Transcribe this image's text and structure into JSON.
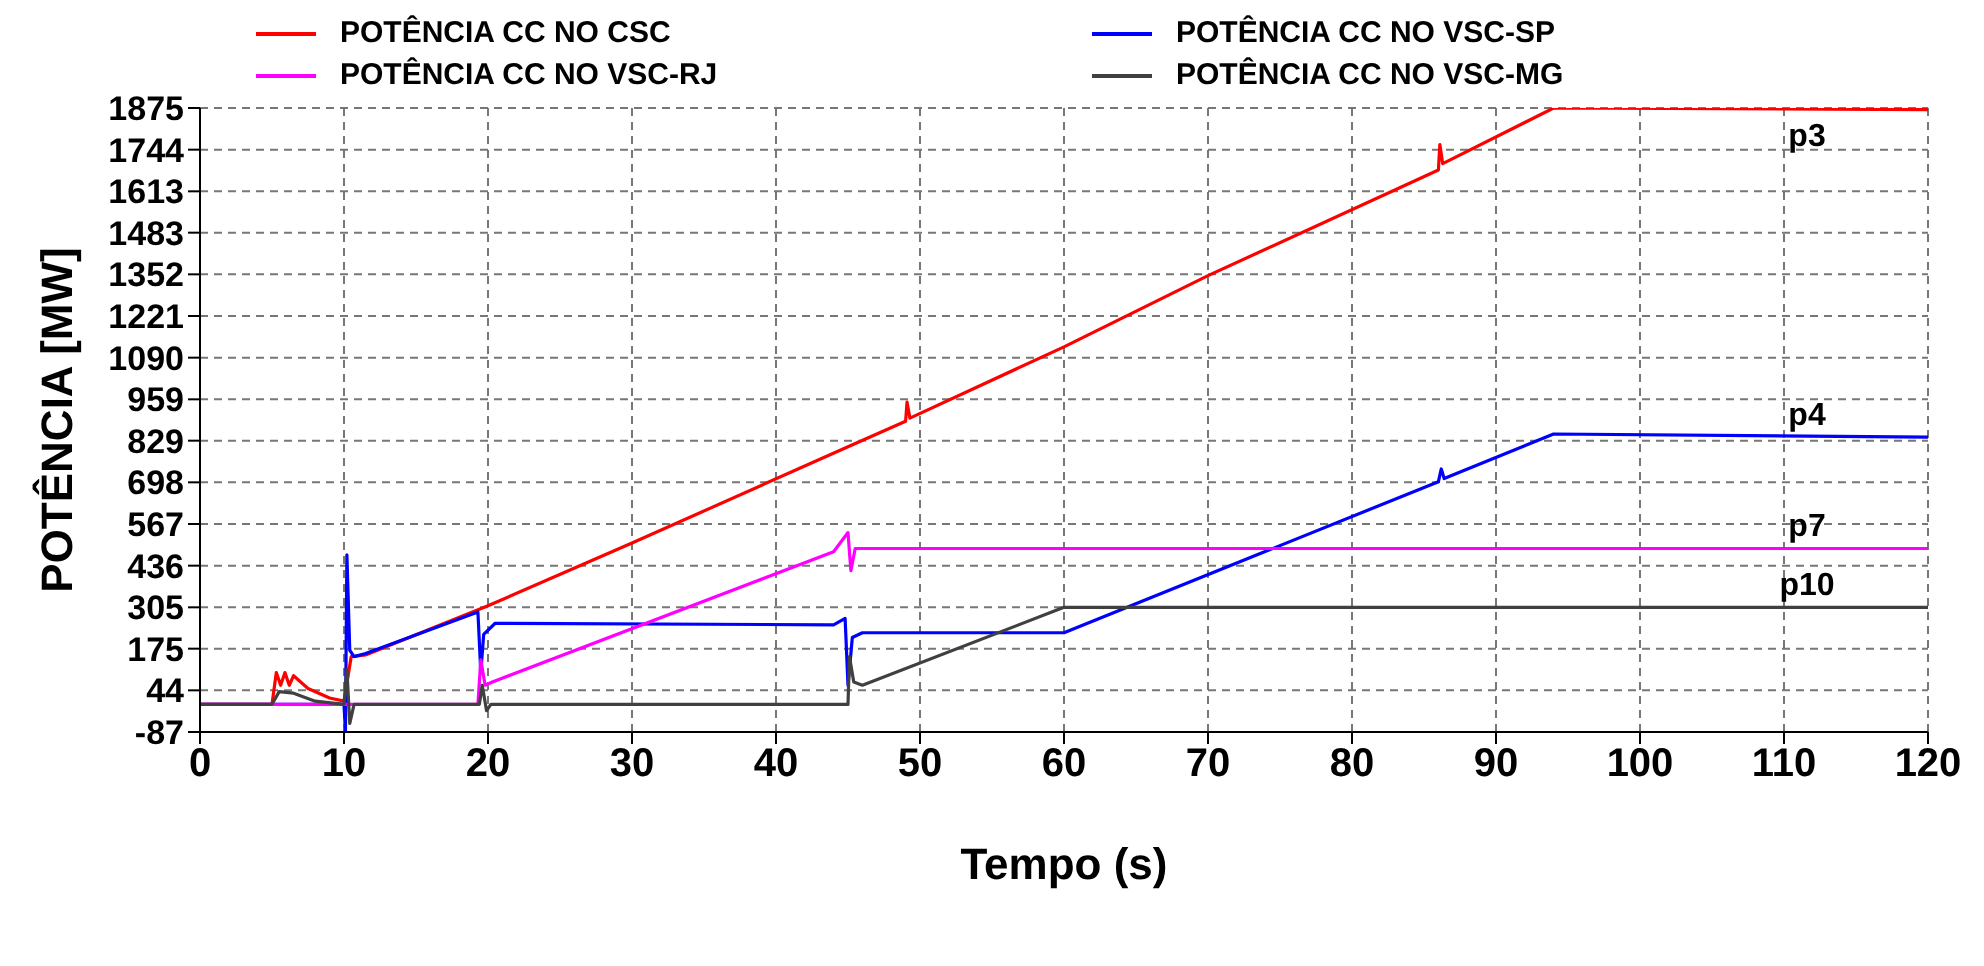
{
  "chart_data": {
    "type": "line",
    "xlabel": "Tempo (s)",
    "ylabel": "POTÊNCIA [MW]",
    "xlim": [
      0,
      120
    ],
    "xticks": [
      0,
      10,
      20,
      30,
      40,
      50,
      60,
      70,
      80,
      90,
      100,
      110,
      120
    ],
    "ylim": [
      -87,
      1875
    ],
    "yticks": [
      -87,
      44,
      175,
      305,
      436,
      567,
      698,
      829,
      959,
      1090,
      1221,
      1352,
      1483,
      1613,
      1744,
      1875
    ],
    "grid": true,
    "legend": "top",
    "line_style": "solid",
    "marker": "none",
    "series": [
      {
        "name": "POTÊNCIA CC NO CSC",
        "color": "#ff0000",
        "x": [
          0,
          5,
          5.3,
          5.6,
          5.9,
          6.2,
          6.5,
          7.5,
          9,
          10,
          10.5,
          11.5,
          20,
          30,
          45,
          49,
          49.1,
          49.3,
          60,
          70,
          86,
          86.1,
          86.3,
          94,
          120
        ],
        "values": [
          0,
          0,
          100,
          60,
          100,
          60,
          90,
          50,
          20,
          10,
          150,
          155,
          310,
          507,
          810,
          890,
          950,
          900,
          1124,
          1348,
          1680,
          1760,
          1700,
          1875,
          1870
        ]
      },
      {
        "name": "POTÊNCIA CC NO VSC-SP",
        "color": "#0000ff",
        "x": [
          0,
          10,
          10.1,
          10.2,
          10.4,
          10.7,
          11.5,
          19.3,
          19.5,
          19.7,
          20.5,
          44,
          44.8,
          45,
          45.3,
          46,
          48.5,
          60,
          86,
          86.2,
          86.4,
          94,
          120
        ],
        "values": [
          0,
          0,
          -87,
          470,
          170,
          150,
          160,
          290,
          100,
          220,
          255,
          250,
          270,
          60,
          210,
          225,
          225,
          225,
          700,
          740,
          710,
          850,
          840
        ]
      },
      {
        "name": "POTÊNCIA CC NO VSC-RJ",
        "color": "#ff00ff",
        "x": [
          0,
          19.3,
          19.5,
          19.8,
          20.3,
          44,
          45,
          45.2,
          45.5,
          120
        ],
        "values": [
          0,
          0,
          140,
          60,
          70,
          480,
          540,
          420,
          490,
          490
        ]
      },
      {
        "name": "POTÊNCIA CC NO VSC-MG",
        "color": "#404040",
        "x": [
          0,
          5,
          5.5,
          6.5,
          8,
          10,
          10.2,
          10.4,
          10.7,
          19.4,
          19.6,
          19.9,
          20.2,
          45,
          45.1,
          45.4,
          46,
          60,
          120
        ],
        "values": [
          0,
          0,
          40,
          35,
          10,
          0,
          110,
          -60,
          0,
          0,
          60,
          -20,
          0,
          0,
          150,
          70,
          60,
          305,
          305
        ]
      }
    ],
    "annotations": [
      "p3",
      "p4",
      "p7",
      "p10"
    ]
  }
}
